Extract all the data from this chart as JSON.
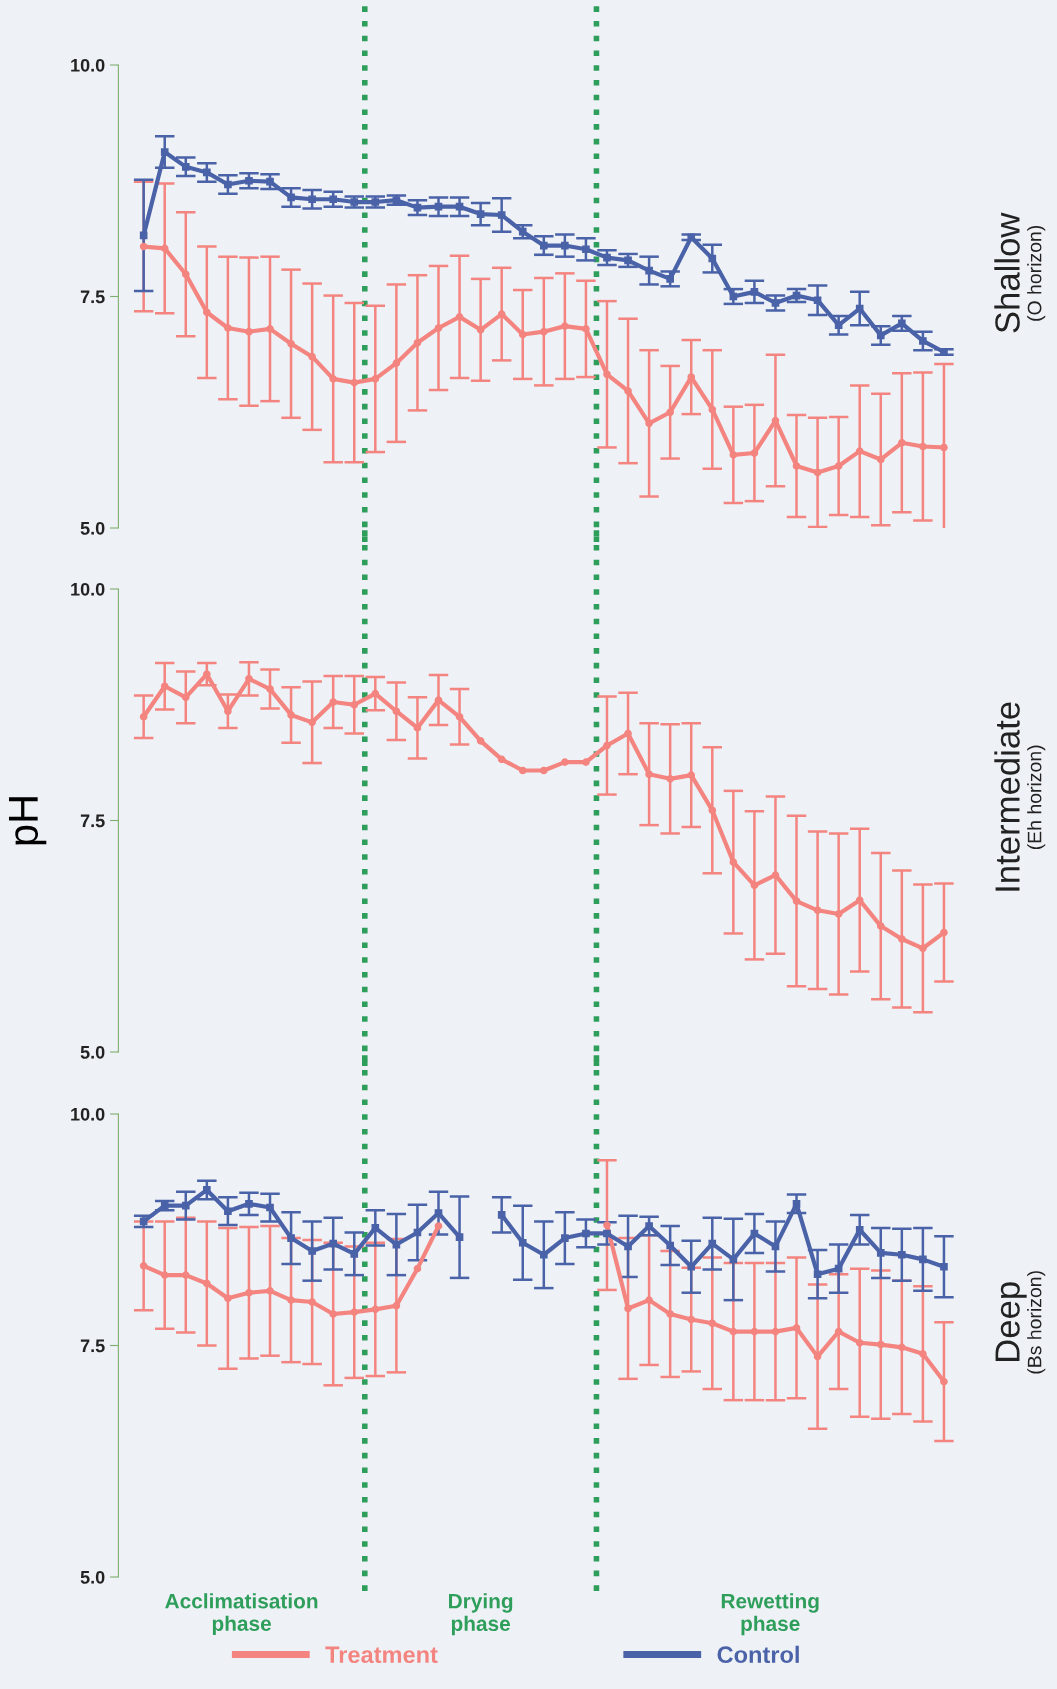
{
  "chart_data": [
    {
      "type": "line",
      "y2label": "Shallow",
      "annotations": [
        "(O horizon)"
      ],
      "categories": [
        null,
        null,
        null,
        null,
        null,
        null,
        null,
        null,
        null,
        null,
        null,
        null,
        null,
        null,
        null,
        null,
        null,
        null,
        null,
        null,
        null,
        null,
        null,
        null,
        null,
        null,
        null,
        null,
        null,
        null,
        null,
        null,
        null,
        null,
        null,
        null,
        null,
        null,
        null
      ],
      "ylim": [
        5,
        10
      ],
      "yticks": [
        {
          "value": 5,
          "label": "5.0"
        },
        {
          "value": 7.5,
          "label": "7.5"
        },
        {
          "value": 10,
          "label": "10.0"
        }
      ],
      "tick_labels": "y",
      "grid": false,
      "legend": false,
      "series": [
        {
          "color": "#f4847f",
          "marker": "circle",
          "values": [
            8.04,
            8.02,
            7.74,
            7.33,
            7.16,
            7.12,
            7.15,
            6.99,
            6.85,
            6.61,
            6.57,
            6.61,
            6.78,
            7.0,
            7.16,
            7.28,
            7.14,
            7.31,
            7.09,
            7.12,
            7.18,
            7.15,
            6.66,
            6.48,
            6.13,
            6.25,
            6.63,
            6.28,
            5.79,
            5.81,
            6.16,
            5.67,
            5.6,
            5.67,
            5.83,
            5.74,
            5.92,
            5.88,
            5.87
          ],
          "errors": [
            0.7,
            0.7,
            0.67,
            0.71,
            0.77,
            0.8,
            0.78,
            0.8,
            0.79,
            0.9,
            0.86,
            0.79,
            0.85,
            0.73,
            0.67,
            0.66,
            0.55,
            0.5,
            0.48,
            0.58,
            0.57,
            0.52,
            0.79,
            0.78,
            0.79,
            0.5,
            0.4,
            0.64,
            0.52,
            0.52,
            0.71,
            0.55,
            0.59,
            0.53,
            0.71,
            0.71,
            0.75,
            0.8,
            0.9
          ]
        },
        {
          "color": "#4a62a8",
          "marker": "square",
          "values": [
            8.16,
            9.06,
            8.9,
            8.84,
            8.71,
            8.75,
            8.74,
            8.57,
            8.55,
            8.55,
            8.52,
            8.52,
            8.54,
            8.46,
            8.47,
            8.47,
            8.39,
            8.38,
            8.2,
            8.05,
            8.05,
            8.01,
            7.92,
            7.89,
            7.78,
            7.69,
            8.14,
            7.91,
            7.5,
            7.55,
            7.43,
            7.51,
            7.46,
            7.19,
            7.37,
            7.08,
            7.21,
            7.02,
            6.9
          ],
          "errors": [
            0.6,
            0.17,
            0.1,
            0.1,
            0.1,
            0.08,
            0.08,
            0.1,
            0.1,
            0.08,
            0.06,
            0.06,
            0.05,
            0.08,
            0.1,
            0.1,
            0.12,
            0.18,
            0.07,
            0.1,
            0.12,
            0.12,
            0.08,
            0.07,
            0.15,
            0.08,
            0.03,
            0.15,
            0.08,
            0.12,
            0.08,
            0.07,
            0.16,
            0.1,
            0.18,
            0.1,
            0.08,
            0.1,
            0.03
          ]
        }
      ]
    },
    {
      "type": "line",
      "y2label": "Intermediate",
      "annotations": [
        "(Eh horizon)"
      ],
      "ylabel": "pH",
      "categories": [
        null,
        null,
        null,
        null,
        null,
        null,
        null,
        null,
        null,
        null,
        null,
        null,
        null,
        null,
        null,
        null,
        null,
        null,
        null,
        null,
        null,
        null,
        null,
        null,
        null,
        null,
        null,
        null,
        null,
        null,
        null,
        null,
        null,
        null,
        null,
        null,
        null,
        null,
        null
      ],
      "ylim": [
        5,
        10
      ],
      "yticks": [
        {
          "value": 5,
          "label": "5.0"
        },
        {
          "value": 7.5,
          "label": "7.5"
        },
        {
          "value": 10,
          "label": "10.0"
        }
      ],
      "tick_labels": "y",
      "grid": false,
      "legend": false,
      "series": [
        {
          "color": "#f4847f",
          "marker": "circle",
          "values": [
            8.62,
            8.95,
            8.83,
            9.08,
            8.68,
            9.03,
            8.92,
            8.64,
            8.56,
            8.78,
            8.75,
            8.87,
            8.68,
            8.5,
            8.8,
            8.62,
            8.36,
            8.16,
            8.04,
            8.04,
            8.13,
            8.13,
            8.31,
            8.44,
            8.0,
            7.95,
            7.99,
            7.61,
            7.05,
            6.8,
            6.91,
            6.63,
            6.53,
            6.49,
            6.64,
            6.36,
            6.22,
            6.12,
            6.29
          ],
          "errors": [
            0.23,
            0.25,
            0.28,
            0.12,
            0.18,
            0.18,
            0.21,
            0.3,
            0.44,
            0.28,
            0.31,
            0.18,
            0.31,
            0.33,
            0.27,
            0.3,
            null,
            null,
            null,
            null,
            null,
            null,
            0.53,
            0.44,
            0.55,
            0.59,
            0.56,
            0.68,
            0.77,
            0.8,
            0.85,
            0.92,
            0.85,
            0.87,
            0.77,
            0.79,
            0.74,
            0.69,
            0.53
          ]
        }
      ]
    },
    {
      "type": "line",
      "y2label": "Deep",
      "categories": [
        null,
        null,
        null,
        null,
        null,
        null,
        null,
        null,
        null,
        null,
        null,
        null,
        null,
        null,
        null,
        null,
        null,
        null,
        null,
        null,
        null,
        null,
        null,
        null,
        null,
        null,
        null,
        null,
        null,
        null,
        null,
        null,
        null,
        null,
        null,
        null,
        null,
        null,
        null
      ],
      "ylim": [
        5,
        10
      ],
      "yticks": [
        {
          "value": 5,
          "label": "5.0"
        },
        {
          "value": 7.5,
          "label": "7.5"
        },
        {
          "value": 10,
          "label": "10.0"
        }
      ],
      "tick_labels": "y",
      "grid": false,
      "legend": "bottom",
      "annotations": [
        "(Bs horizon)",
        "Acclimatisation\nphase",
        "Drying\nphase",
        "Rewetting\nphase"
      ],
      "series": [
        {
          "name": "Treatment",
          "color": "#f4847f",
          "marker": "circle",
          "values": [
            8.36,
            8.26,
            8.26,
            8.17,
            8.01,
            8.07,
            8.09,
            7.99,
            7.97,
            7.84,
            7.86,
            7.89,
            7.93,
            8.33,
            8.79,
            null,
            null,
            null,
            null,
            null,
            null,
            null,
            8.8,
            7.9,
            7.99,
            7.84,
            7.78,
            7.74,
            7.65,
            7.65,
            7.65,
            7.69,
            7.38,
            7.65,
            7.53,
            7.51,
            7.48,
            7.41,
            7.11
          ],
          "errors": [
            0.48,
            0.58,
            0.62,
            0.67,
            0.76,
            0.71,
            0.7,
            0.67,
            0.67,
            0.77,
            0.71,
            0.72,
            0.72,
            null,
            null,
            null,
            null,
            null,
            null,
            null,
            null,
            null,
            0.7,
            0.76,
            0.7,
            0.68,
            0.56,
            0.71,
            0.74,
            0.74,
            0.74,
            0.76,
            0.78,
            0.62,
            0.8,
            0.8,
            0.72,
            0.73,
            0.64
          ]
        },
        {
          "name": "Control",
          "color": "#4a62a8",
          "marker": "square",
          "values": [
            8.84,
            9.01,
            9.01,
            9.18,
            8.95,
            9.03,
            8.99,
            8.66,
            8.52,
            8.6,
            8.49,
            8.77,
            8.59,
            8.72,
            8.93,
            8.67,
            null,
            8.91,
            8.61,
            8.48,
            8.66,
            8.71,
            8.71,
            8.57,
            8.79,
            8.58,
            8.35,
            8.6,
            8.43,
            8.71,
            8.57,
            9.03,
            8.27,
            8.33,
            8.75,
            8.5,
            8.48,
            8.43,
            8.35
          ],
          "errors": [
            0.06,
            0.05,
            0.15,
            0.1,
            0.15,
            0.12,
            0.15,
            0.28,
            0.32,
            0.28,
            0.23,
            0.19,
            0.33,
            0.3,
            0.23,
            0.44,
            null,
            0.19,
            0.4,
            0.36,
            0.28,
            0.15,
            0.12,
            0.33,
            0.1,
            0.21,
            0.28,
            0.28,
            0.44,
            0.21,
            0.27,
            0.1,
            0.26,
            0.26,
            0.16,
            0.27,
            0.28,
            0.34,
            0.33
          ]
        }
      ]
    }
  ]
}
